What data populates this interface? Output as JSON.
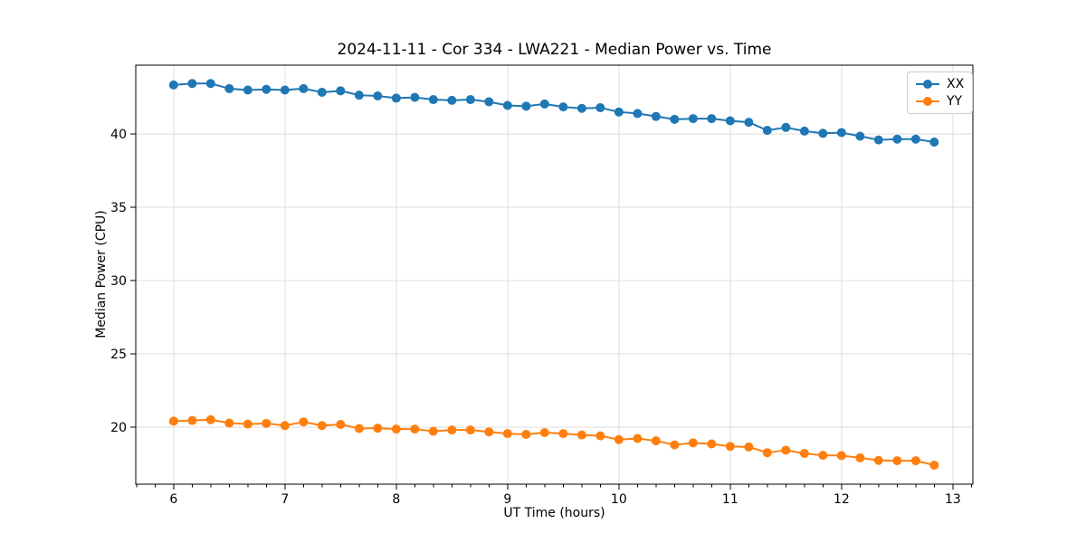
{
  "chart_data": {
    "type": "line",
    "title": "2024-11-11 - Cor 334 - LWA221 - Median Power vs. Time",
    "xlabel": "UT Time (hours)",
    "ylabel": "Median Power (CPU)",
    "grid": true,
    "legend_position": "upper right",
    "xlim": [
      5.66,
      13.18
    ],
    "ylim": [
      16.1,
      44.7
    ],
    "x_ticks": [
      6,
      7,
      8,
      9,
      10,
      11,
      12,
      13
    ],
    "y_ticks": [
      20,
      25,
      30,
      35,
      40
    ],
    "x_minor_step": 0.16667,
    "grid_color": "#dcdcdc",
    "spine_color": "#000000",
    "marker": "circle",
    "x": [
      6.0,
      6.167,
      6.333,
      6.5,
      6.667,
      6.833,
      7.0,
      7.167,
      7.333,
      7.5,
      7.667,
      7.833,
      8.0,
      8.167,
      8.333,
      8.5,
      8.667,
      8.833,
      9.0,
      9.167,
      9.333,
      9.5,
      9.667,
      9.833,
      10.0,
      10.167,
      10.333,
      10.5,
      10.667,
      10.833,
      11.0,
      11.167,
      11.333,
      11.5,
      11.667,
      11.833,
      12.0,
      12.167,
      12.333,
      12.5,
      12.667,
      12.833
    ],
    "series": [
      {
        "name": "XX",
        "color": "#1f77b4",
        "values": [
          43.35,
          43.45,
          43.45,
          43.1,
          43.0,
          43.05,
          43.0,
          43.1,
          42.85,
          42.95,
          42.65,
          42.6,
          42.45,
          42.5,
          42.35,
          42.3,
          42.35,
          42.2,
          41.95,
          41.9,
          42.05,
          41.85,
          41.75,
          41.8,
          41.5,
          41.4,
          41.2,
          41.0,
          41.05,
          41.05,
          40.9,
          40.8,
          40.25,
          40.45,
          40.2,
          40.05,
          40.1,
          39.85,
          39.6,
          39.65,
          39.65,
          39.45
        ]
      },
      {
        "name": "YY",
        "color": "#ff7f0e",
        "values": [
          20.4,
          20.45,
          20.5,
          20.27,
          20.2,
          20.25,
          20.1,
          20.35,
          20.1,
          20.18,
          19.9,
          19.92,
          19.86,
          19.86,
          19.71,
          19.8,
          19.8,
          19.67,
          19.55,
          19.5,
          19.62,
          19.55,
          19.46,
          19.4,
          19.14,
          19.22,
          19.06,
          18.78,
          18.92,
          18.85,
          18.68,
          18.64,
          18.25,
          18.42,
          18.2,
          18.07,
          18.05,
          17.9,
          17.72,
          17.7,
          17.7,
          17.4
        ]
      }
    ]
  }
}
